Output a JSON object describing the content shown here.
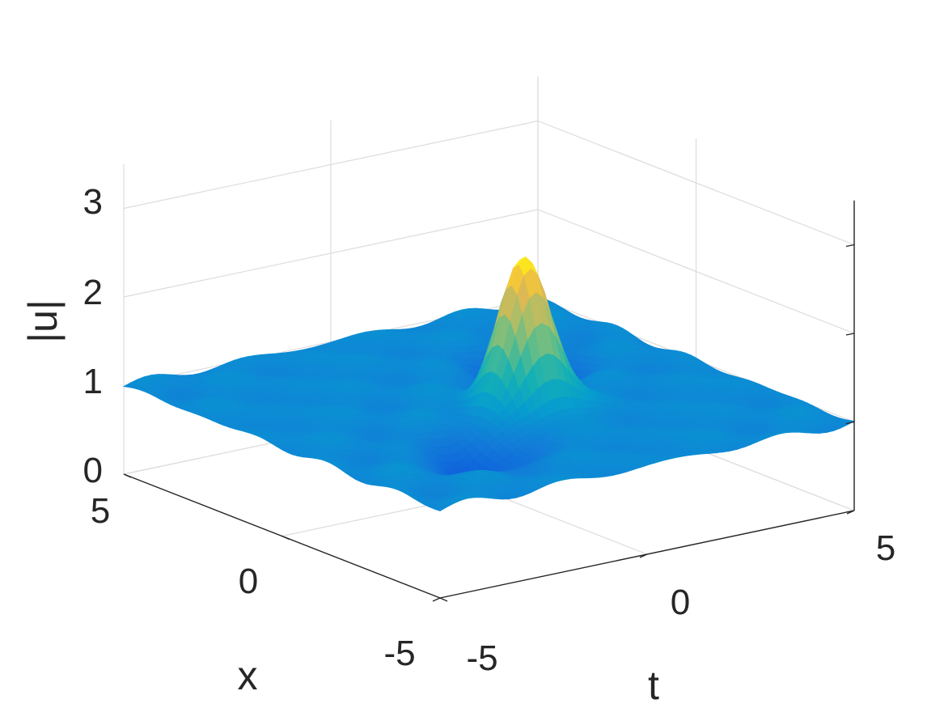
{
  "chart_data": {
    "type": "surface",
    "title": "",
    "xlabel": "x",
    "ylabel": "t",
    "zlabel": "|u|",
    "x_range": [
      -5,
      5
    ],
    "t_range": [
      -5,
      5
    ],
    "z_range": [
      0,
      3.5
    ],
    "x_ticks": [
      "-5",
      "0",
      "5"
    ],
    "t_ticks": [
      "-5",
      "0",
      "5"
    ],
    "z_ticks": [
      "0",
      "1",
      "2",
      "3"
    ],
    "grid": true,
    "colormap": "parula",
    "background_level": 1.0,
    "ripple_amplitude": 0.05,
    "features": [
      {
        "kind": "peak",
        "x": 0.5,
        "t": 0.5,
        "value": 2.66
      },
      {
        "kind": "dip",
        "x": 2.3,
        "t": -1.8,
        "value": 0.6
      },
      {
        "kind": "dip",
        "x": -1.9,
        "t": 2.1,
        "value": 0.6
      }
    ]
  }
}
